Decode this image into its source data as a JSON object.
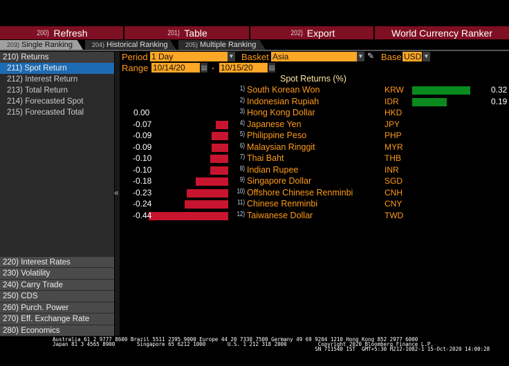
{
  "toolbar": [
    {
      "num": "200)",
      "label": "Refresh"
    },
    {
      "num": "201)",
      "label": "Table"
    },
    {
      "num": "202)",
      "label": "Export"
    }
  ],
  "app_title": "World Currency Ranker",
  "tabs": [
    {
      "num": "203)",
      "label": "Single Ranking"
    },
    {
      "num": "204)",
      "label": "Historical Ranking"
    },
    {
      "num": "205)",
      "label": "Multiple Ranking"
    }
  ],
  "sidebar": {
    "header": "210) Returns",
    "items": [
      "211) Spot Return",
      "212) Interest Return",
      "213) Total Return",
      "214) Forecasted Spot",
      "215) Forecasted Total"
    ],
    "sections": [
      "220) Interest Rates",
      "230) Volatility",
      "240) Carry Trade",
      "250) CDS",
      "260) Purch. Power",
      "270) Eff. Exchange Rate",
      "280) Economics"
    ]
  },
  "collapse_glyph": "«",
  "controls": {
    "period_label": "Period",
    "period_value": "1 Day",
    "basket_label": "Basket",
    "basket_value": "Asia",
    "base_label": "Base",
    "base_value": "USD",
    "range_label": "Range",
    "range_from": "10/14/20",
    "range_sep": "-",
    "range_to": "10/15/20"
  },
  "table_title": "Spot Returns (%)",
  "colors": {
    "positive": "#0a8a1e",
    "negative": "#c8152f",
    "accent": "#ff9b1a"
  },
  "rows": [
    {
      "rank": "1)",
      "name": "South Korean Won",
      "code": "KRW",
      "value": 0.32,
      "label": "0.32"
    },
    {
      "rank": "2)",
      "name": "Indonesian Rupiah",
      "code": "IDR",
      "value": 0.19,
      "label": "0.19"
    },
    {
      "rank": "3)",
      "name": "Hong Kong Dollar",
      "code": "HKD",
      "value": 0.0,
      "label": "0.00"
    },
    {
      "rank": "4)",
      "name": "Japanese Yen",
      "code": "JPY",
      "value": -0.07,
      "label": "-0.07"
    },
    {
      "rank": "5)",
      "name": "Philippine Peso",
      "code": "PHP",
      "value": -0.09,
      "label": "-0.09"
    },
    {
      "rank": "6)",
      "name": "Malaysian Ringgit",
      "code": "MYR",
      "value": -0.09,
      "label": "-0.09"
    },
    {
      "rank": "7)",
      "name": "Thai Baht",
      "code": "THB",
      "value": -0.1,
      "label": "-0.10"
    },
    {
      "rank": "8)",
      "name": "Indian Rupee",
      "code": "INR",
      "value": -0.1,
      "label": "-0.10"
    },
    {
      "rank": "9)",
      "name": "Singapore Dollar",
      "code": "SGD",
      "value": -0.18,
      "label": "-0.18"
    },
    {
      "rank": "10)",
      "name": "Offshore Chinese Renminbi",
      "code": "CNH",
      "value": -0.23,
      "label": "-0.23"
    },
    {
      "rank": "11)",
      "name": "Chinese Renminbi",
      "code": "CNY",
      "value": -0.24,
      "label": "-0.24"
    },
    {
      "rank": "12)",
      "name": "Taiwanese Dollar",
      "code": "TWD",
      "value": -0.44,
      "label": "-0.44"
    }
  ],
  "footer": {
    "line1": "Australia 61 2 9777 8600 Brazil 5511 2395 9000 Europe 44 20 7330 7500 Germany 49 69 9204 1210 Hong Kong 852 2977 6000",
    "line2": "Japan 81 3 4565 8900       Singapore 65 6212 1000       U.S. 1 212 318 2000          Copyright 2020 Bloomberg Finance L.P.",
    "line3": "                                                                                    SN 711540 IST  GMT+5:30 H212-1082-1 15-Oct-2020 14:00:28"
  }
}
